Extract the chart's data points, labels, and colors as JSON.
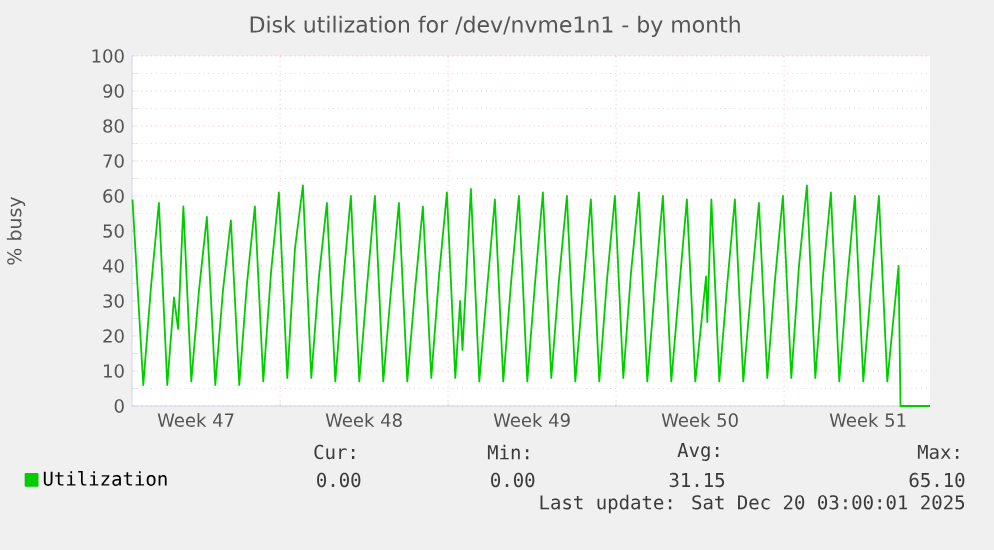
{
  "chart_data": {
    "type": "line",
    "title": "Disk utilization for /dev/nvme1n1 - by month",
    "ylabel": "% busy",
    "x": [
      "2025-11-17T20:24",
      "2025-11-18T07:12",
      "2025-11-18T14:53",
      "2025-11-18T22:48",
      "2025-11-19T07:12",
      "2025-11-19T13:55",
      "2025-11-19T18:00",
      "2025-11-19T23:17",
      "2025-11-20T07:12",
      "2025-11-20T14:53",
      "2025-11-20T22:48",
      "2025-11-21T07:12",
      "2025-11-21T14:53",
      "2025-11-21T22:48",
      "2025-11-22T07:12",
      "2025-11-22T14:53",
      "2025-11-22T22:48",
      "2025-11-23T07:12",
      "2025-11-23T14:53",
      "2025-11-23T22:48",
      "2025-11-24T07:12",
      "2025-11-24T14:53",
      "2025-11-24T22:48",
      "2025-11-25T07:12",
      "2025-11-25T14:53",
      "2025-11-25T22:48",
      "2025-11-26T07:12",
      "2025-11-26T14:53",
      "2025-11-26T22:48",
      "2025-11-27T07:12",
      "2025-11-27T14:53",
      "2025-11-27T22:48",
      "2025-11-28T07:12",
      "2025-11-28T14:53",
      "2025-11-28T22:48",
      "2025-11-29T07:12",
      "2025-11-29T14:53",
      "2025-11-29T22:48",
      "2025-11-30T07:12",
      "2025-11-30T14:53",
      "2025-11-30T22:48",
      "2025-12-01T07:12",
      "2025-12-01T12:00",
      "2025-12-01T14:24",
      "2025-12-01T22:48",
      "2025-12-02T07:12",
      "2025-12-02T14:53",
      "2025-12-02T22:48",
      "2025-12-03T07:12",
      "2025-12-03T14:53",
      "2025-12-03T22:48",
      "2025-12-04T07:12",
      "2025-12-04T14:53",
      "2025-12-04T22:48",
      "2025-12-05T07:12",
      "2025-12-05T14:53",
      "2025-12-05T22:48",
      "2025-12-06T07:12",
      "2025-12-06T14:53",
      "2025-12-06T22:48",
      "2025-12-07T07:12",
      "2025-12-07T14:53",
      "2025-12-07T22:48",
      "2025-12-08T07:12",
      "2025-12-08T14:53",
      "2025-12-08T22:48",
      "2025-12-09T07:12",
      "2025-12-09T14:53",
      "2025-12-09T22:48",
      "2025-12-10T07:12",
      "2025-12-10T14:53",
      "2025-12-10T22:48",
      "2025-12-11T07:12",
      "2025-12-11T18:00",
      "2025-12-11T19:12",
      "2025-12-11T23:17",
      "2025-12-12T07:12",
      "2025-12-12T14:53",
      "2025-12-12T22:48",
      "2025-12-13T07:12",
      "2025-12-13T14:53",
      "2025-12-13T22:48",
      "2025-12-14T07:12",
      "2025-12-14T14:53",
      "2025-12-14T22:48",
      "2025-12-15T07:12",
      "2025-12-15T14:53",
      "2025-12-15T22:48",
      "2025-12-16T07:12",
      "2025-12-16T14:53",
      "2025-12-16T22:48",
      "2025-12-17T07:12",
      "2025-12-17T14:53",
      "2025-12-17T22:48",
      "2025-12-18T07:12",
      "2025-12-18T14:53",
      "2025-12-18T22:48",
      "2025-12-19T07:12",
      "2025-12-19T18:29",
      "2025-12-19T20:24",
      "2025-12-21T01:55"
    ],
    "series": [
      {
        "name": "Utilization",
        "color": "#00cc00",
        "values": [
          59,
          6,
          34,
          58,
          6,
          31,
          22,
          57,
          7,
          33,
          54,
          6,
          33,
          53,
          6,
          35,
          57,
          7,
          38,
          61,
          8,
          45,
          63,
          8,
          37,
          58,
          7,
          35,
          60,
          7,
          34,
          60,
          7,
          33,
          58,
          7,
          33,
          57,
          8,
          37,
          61,
          8,
          30,
          16,
          62,
          7,
          33,
          59,
          7,
          35,
          60,
          7,
          35,
          61,
          8,
          36,
          60,
          7,
          33,
          59,
          7,
          36,
          60,
          8,
          38,
          61,
          7,
          34,
          60,
          7,
          33,
          59,
          7,
          37,
          24,
          59,
          7,
          34,
          59,
          7,
          33,
          58,
          8,
          36,
          60,
          8,
          40,
          63,
          8,
          37,
          61,
          7,
          35,
          60,
          7,
          34,
          60,
          7,
          40,
          0,
          0
        ]
      }
    ],
    "xlim": [
      "2025-11-17T19:55",
      "2025-12-21T01:55"
    ],
    "xticks": [
      {
        "value": "2025-11-20T12:00",
        "label": "Week 47"
      },
      {
        "value": "2025-11-24",
        "label": null
      },
      {
        "value": "2025-11-27T12:00",
        "label": "Week 48"
      },
      {
        "value": "2025-12-01",
        "label": null
      },
      {
        "value": "2025-12-04T12:00",
        "label": "Week 49"
      },
      {
        "value": "2025-12-08",
        "label": null
      },
      {
        "value": "2025-12-11T12:00",
        "label": "Week 50"
      },
      {
        "value": "2025-12-15",
        "label": null
      },
      {
        "value": "2025-12-18T12:00",
        "label": "Week 51"
      }
    ],
    "ylim": [
      0,
      100
    ],
    "yticks": [
      0,
      10,
      20,
      30,
      40,
      50,
      60,
      70,
      80,
      90,
      100
    ],
    "grid": true,
    "legend": "bottom",
    "marker": "none",
    "line_style": "solid",
    "annotations": [
      "Cur:",
      "0.00",
      "Min:",
      "0.00",
      "Avg:",
      "31.15",
      "Max:",
      "65.10",
      "Last update: Sat Dec 20 03:00:01 2025"
    ]
  }
}
